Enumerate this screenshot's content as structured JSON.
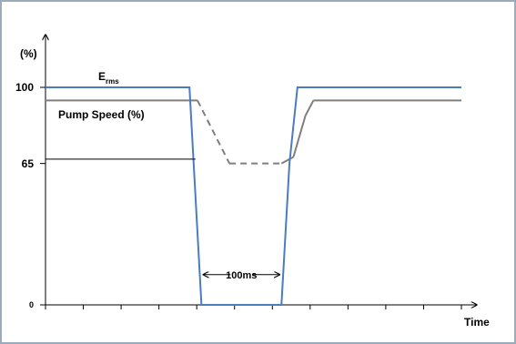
{
  "chart_data": {
    "type": "line",
    "ylabel": "(%)",
    "xlabel": "Time",
    "y_ticks": [
      "100",
      "65",
      "0"
    ],
    "y_tick_values": [
      100,
      65,
      0
    ],
    "ylim": [
      0,
      118
    ],
    "x_tick_count": 12,
    "grid": false,
    "series": [
      {
        "name_main": "E",
        "name_sub": "rms",
        "color": "#4a7cc0",
        "dash": false,
        "points": [
          [
            0,
            100
          ],
          [
            3.6,
            100
          ],
          [
            3.9,
            0
          ],
          [
            5.9,
            0
          ],
          [
            6.1,
            65
          ],
          [
            6.3,
            100
          ],
          [
            10.4,
            100
          ]
        ]
      },
      {
        "name": "Pump Speed (%)",
        "color": "#7f7f7f",
        "dash_segments": [
          [
            3.8,
            4.6
          ]
        ],
        "points": [
          [
            0,
            94
          ],
          [
            3.8,
            94
          ],
          [
            4.6,
            65
          ],
          [
            5.9,
            65
          ],
          [
            6.2,
            68
          ],
          [
            6.5,
            87
          ],
          [
            6.7,
            94
          ],
          [
            10.4,
            94
          ]
        ]
      }
    ],
    "annotations": [
      {
        "type": "leader",
        "label": "65",
        "from": [
          0,
          67
        ],
        "to": [
          3.75,
          67
        ]
      },
      {
        "type": "interval",
        "label": "100ms",
        "from": 3.9,
        "to": 5.9,
        "y": 16
      }
    ]
  }
}
